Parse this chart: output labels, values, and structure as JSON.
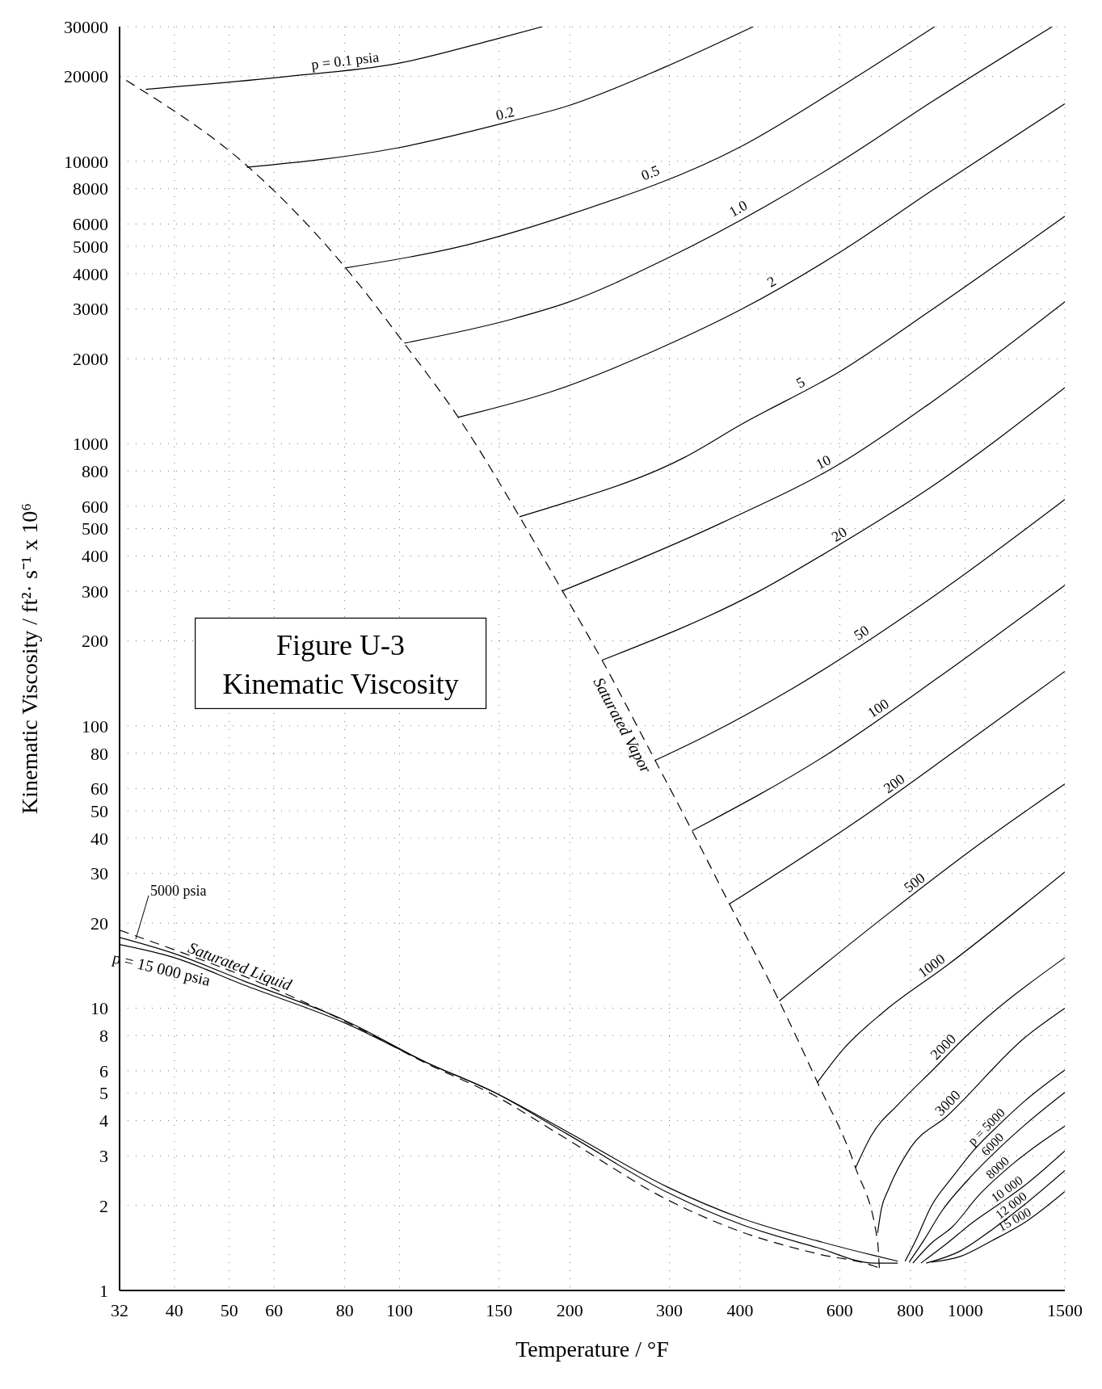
{
  "chart_data": {
    "type": "line",
    "title": "Figure U-3",
    "subtitle": "Kinematic Viscosity",
    "xlabel": "Temperature / °F",
    "ylabel": "Kinematic Viscosity / ft²· s⁻¹ x 10⁶",
    "log": "xy",
    "grid": true,
    "marker": "none",
    "line_style": "solid",
    "xlim": [
      32,
      1500
    ],
    "xticks": [
      32,
      40,
      50,
      60,
      80,
      100,
      150,
      200,
      300,
      400,
      600,
      800,
      1000,
      1500
    ],
    "ylim": [
      1,
      30000
    ],
    "yticks": [
      1,
      2,
      3,
      4,
      5,
      6,
      8,
      10,
      20,
      30,
      40,
      50,
      60,
      80,
      100,
      200,
      300,
      400,
      500,
      600,
      800,
      1000,
      2000,
      3000,
      4000,
      5000,
      6000,
      8000,
      10000,
      20000,
      30000
    ],
    "series": [
      {
        "name": "Saturated Vapor",
        "color": "#000000",
        "line_style": "dashed",
        "x": [
          705,
          700,
          640,
          548,
          469,
          383,
          329,
          283,
          228,
          194,
          163,
          127,
          102,
          80,
          54,
          35,
          32
        ],
        "values": [
          1.2,
          1.49,
          2.72,
          5.46,
          10.6,
          23.4,
          42.5,
          75.5,
          171,
          301,
          551,
          1240,
          2260,
          4230,
          9570,
          17900,
          20000
        ]
      },
      {
        "name": "Saturated Liquid",
        "color": "#000000",
        "line_style": "dashed",
        "x": [
          32,
          40,
          53,
          80,
          112,
          146,
          198,
          297,
          403,
          547,
          690,
          705
        ],
        "values": [
          18.9,
          16.1,
          13.0,
          9.0,
          6.35,
          4.95,
          3.43,
          2.1,
          1.61,
          1.35,
          1.22,
          1.2
        ]
      },
      {
        "name": "5000 psia",
        "color": "#000000",
        "x": [
          32,
          40,
          53,
          80,
          112,
          146,
          198,
          297,
          403,
          547,
          690,
          760
        ],
        "values": [
          17.8,
          15.6,
          12.5,
          9.06,
          6.4,
          5.07,
          3.58,
          2.23,
          1.71,
          1.42,
          1.25,
          1.25
        ]
      },
      {
        "name": "p = 15 000 psia",
        "color": "#000000",
        "x": [
          32,
          40,
          53,
          80,
          112,
          146,
          198,
          297,
          403,
          547,
          690,
          760
        ],
        "values": [
          16.8,
          15.1,
          12.1,
          8.87,
          6.4,
          5.07,
          3.65,
          2.33,
          1.8,
          1.5,
          1.33,
          1.27
        ]
      },
      {
        "name": "p = 0.1 psia",
        "color": "#000000",
        "x": [
          35.6,
          62,
          99,
          146,
          179
        ],
        "values": [
          18000,
          19900,
          22200,
          26900,
          30000
        ]
      },
      {
        "name": "0.2",
        "color": "#000000",
        "x": [
          53.7,
          99,
          158,
          198,
          295,
          422
        ],
        "values": [
          9530,
          11150,
          13900,
          15700,
          21600,
          30000
        ]
      },
      {
        "name": "0.5",
        "color": "#000000",
        "x": [
          80,
          127,
          198,
          402,
          603,
          883
        ],
        "values": [
          4190,
          4970,
          6440,
          11300,
          18400,
          30000
        ]
      },
      {
        "name": "1.0",
        "color": "#000000",
        "x": [
          102,
          158,
          198,
          295,
          603,
          875,
          1425
        ],
        "values": [
          2270,
          2760,
          3160,
          4500,
          10000,
          16300,
          30000
        ]
      },
      {
        "name": "2",
        "color": "#000000",
        "x": [
          127,
          185,
          295,
          402,
          603,
          875,
          1500
        ],
        "values": [
          1240,
          1525,
          2220,
          2990,
          4790,
          7900,
          16000
        ]
      },
      {
        "name": "5",
        "color": "#000000",
        "x": [
          163,
          185,
          319,
          402,
          603,
          875,
          1500
        ],
        "values": [
          551,
          595,
          894,
          1170,
          1810,
          2990,
          6390
        ]
      },
      {
        "name": "10",
        "color": "#000000",
        "x": [
          194,
          372,
          603,
          875,
          1500
        ],
        "values": [
          301,
          525,
          853,
          1410,
          3180
        ]
      },
      {
        "name": "20",
        "color": "#000000",
        "x": [
          228,
          428,
          603,
          875,
          1500
        ],
        "values": [
          171,
          297,
          442,
          707,
          1580
        ]
      },
      {
        "name": "50",
        "color": "#000000",
        "x": [
          283,
          347,
          496,
          899,
          1500
        ],
        "values": [
          75.5,
          91.9,
          136,
          297,
          634
        ]
      },
      {
        "name": "100",
        "color": "#000000",
        "x": [
          329,
          567,
          899,
          1500
        ],
        "values": [
          42.5,
          78.7,
          149,
          315
        ]
      },
      {
        "name": "200",
        "color": "#000000",
        "x": [
          383,
          643,
          992,
          1500
        ],
        "values": [
          23.4,
          46.0,
          85.6,
          156
        ]
      },
      {
        "name": "500",
        "color": "#000000",
        "x": [
          469,
          735,
          1063,
          1500
        ],
        "values": [
          10.6,
          21.8,
          38.3,
          62.3
        ]
      },
      {
        "name": "1000",
        "color": "#000000",
        "x": [
          548,
          608,
          719,
          925,
          1500
        ],
        "values": [
          5.46,
          7.14,
          9.74,
          14.1,
          30.4
        ]
      },
      {
        "name": "2000",
        "color": "#000000",
        "x": [
          640,
          682,
          766,
          881,
          1001,
          1500
        ],
        "values": [
          2.72,
          3.53,
          4.62,
          6.11,
          7.91,
          15.1
        ]
      },
      {
        "name": "3000",
        "color": "#000000",
        "x": [
          700,
          711,
          731,
          800,
          929,
          1279,
          1500
        ],
        "values": [
          1.6,
          1.95,
          2.27,
          3.2,
          4.15,
          7.91,
          10.0
        ]
      },
      {
        "name": "p = 5000",
        "color": "#000000",
        "x": [
          783,
          817,
          871,
          949,
          1034,
          1150,
          1279,
          1500
        ],
        "values": [
          1.27,
          1.5,
          1.99,
          2.52,
          3.13,
          3.88,
          4.72,
          6.04
        ]
      },
      {
        "name": "6000",
        "color": "#000000",
        "x": [
          796,
          844,
          909,
          1012,
          1150,
          1279,
          1500
        ],
        "values": [
          1.26,
          1.5,
          1.91,
          2.47,
          3.2,
          3.88,
          5.03
        ]
      },
      {
        "name": "8000",
        "color": "#000000",
        "x": [
          808,
          871,
          949,
          1056,
          1214,
          1500
        ],
        "values": [
          1.25,
          1.47,
          1.68,
          2.17,
          2.81,
          3.82
        ]
      },
      {
        "name": "10 000",
        "color": "#000000",
        "x": [
          835,
          929,
          1034,
          1150,
          1279,
          1500
        ],
        "values": [
          1.25,
          1.47,
          1.75,
          2.03,
          2.37,
          3.12
        ]
      },
      {
        "name": "12 000",
        "color": "#000000",
        "x": [
          853,
          980,
          1114,
          1279,
          1500
        ],
        "values": [
          1.25,
          1.38,
          1.64,
          2.03,
          2.66
        ]
      },
      {
        "name": "15 000",
        "color": "#000000",
        "x": [
          871,
          980,
          1114,
          1279,
          1500
        ],
        "values": [
          1.26,
          1.32,
          1.5,
          1.75,
          2.24
        ]
      }
    ]
  }
}
